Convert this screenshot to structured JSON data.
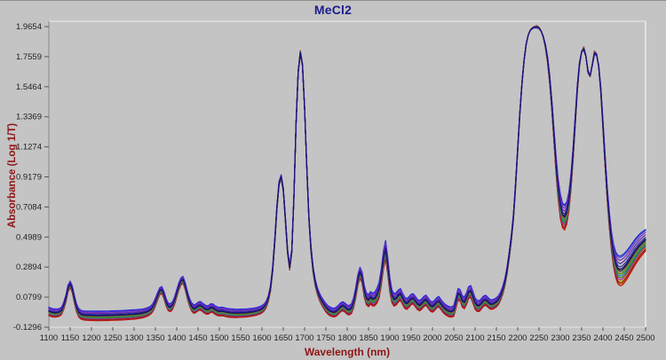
{
  "window": {
    "background_color": "#c4c4c4"
  },
  "chart": {
    "title": "MeCl2",
    "title_color": "#1c1c8e",
    "xlabel": "Wavelength (nm)",
    "ylabel": "Absorbance (Log 1/T)",
    "axis_title_color": "#8e1515"
  },
  "chart_data": {
    "type": "line",
    "title": "MeCl2",
    "xlabel": "Wavelength (nm)",
    "ylabel": "Absorbance (Log 1/T)",
    "xlim": [
      1100,
      2500
    ],
    "ylim": [
      -0.1296,
      1.9654
    ],
    "grid": false,
    "legend": "none",
    "x_ticks": [
      1100,
      1150,
      1200,
      1250,
      1300,
      1350,
      1400,
      1450,
      1500,
      1550,
      1600,
      1650,
      1700,
      1750,
      1800,
      1850,
      1900,
      1950,
      2000,
      2050,
      2100,
      2150,
      2200,
      2250,
      2300,
      2350,
      2400,
      2450,
      2500
    ],
    "y_ticks": [
      "1.9654",
      "1.7559",
      "1.5464",
      "1.3369",
      "1.1274",
      "0.9179",
      "0.7084",
      "0.4989",
      "0.2894",
      "0.0799",
      "-0.1296"
    ],
    "x_start": 1100,
    "x_step": 5,
    "description": "Many overlapping NIR absorbance spectra of MeCl2 samples; peaks near 1150, 1365, 1415, 1645, 1690, 1830, 1890, 2245, 2355 and 2381 nm",
    "base_absorbance": [
      -0.02,
      -0.026,
      -0.03,
      -0.031,
      -0.03,
      -0.026,
      -0.015,
      0.02,
      0.07,
      0.14,
      0.17,
      0.135,
      0.065,
      0.005,
      -0.028,
      -0.042,
      -0.047,
      -0.049,
      -0.05,
      -0.05,
      -0.05,
      -0.05,
      -0.051,
      -0.051,
      -0.051,
      -0.05,
      -0.05,
      -0.05,
      -0.05,
      -0.049,
      -0.049,
      -0.048,
      -0.048,
      -0.047,
      -0.047,
      -0.046,
      -0.045,
      -0.044,
      -0.043,
      -0.042,
      -0.041,
      -0.04,
      -0.038,
      -0.036,
      -0.034,
      -0.03,
      -0.025,
      -0.018,
      -0.008,
      0.012,
      0.045,
      0.085,
      0.12,
      0.13,
      0.095,
      0.045,
      0.012,
      0.006,
      0.02,
      0.055,
      0.105,
      0.155,
      0.19,
      0.2,
      0.155,
      0.095,
      0.045,
      0.012,
      -0.004,
      0.002,
      0.014,
      0.02,
      0.01,
      -0.002,
      -0.01,
      -0.008,
      0.004,
      0.002,
      -0.01,
      -0.018,
      -0.022,
      -0.02,
      -0.022,
      -0.026,
      -0.029,
      -0.031,
      -0.032,
      -0.033,
      -0.033,
      -0.033,
      -0.032,
      -0.032,
      -0.031,
      -0.03,
      -0.028,
      -0.026,
      -0.024,
      -0.021,
      -0.017,
      -0.012,
      -0.005,
      0.008,
      0.03,
      0.07,
      0.14,
      0.27,
      0.47,
      0.7,
      0.87,
      0.92,
      0.83,
      0.62,
      0.4,
      0.285,
      0.4,
      0.78,
      1.29,
      1.65,
      1.785,
      1.7,
      1.4,
      1.0,
      0.64,
      0.415,
      0.27,
      0.18,
      0.122,
      0.082,
      0.052,
      0.028,
      0.006,
      -0.01,
      -0.02,
      -0.026,
      -0.028,
      -0.02,
      -0.006,
      0.01,
      0.016,
      0.006,
      -0.008,
      -0.012,
      0.0,
      0.04,
      0.11,
      0.2,
      0.25,
      0.215,
      0.12,
      0.068,
      0.055,
      0.075,
      0.062,
      0.068,
      0.09,
      0.13,
      0.22,
      0.34,
      0.41,
      0.3,
      0.165,
      0.085,
      0.06,
      0.068,
      0.088,
      0.098,
      0.068,
      0.04,
      0.032,
      0.046,
      0.064,
      0.068,
      0.048,
      0.028,
      0.02,
      0.032,
      0.05,
      0.058,
      0.038,
      0.018,
      0.01,
      0.022,
      0.04,
      0.048,
      0.028,
      0.008,
      -0.006,
      -0.016,
      -0.022,
      -0.024,
      -0.016,
      0.04,
      0.1,
      0.092,
      0.05,
      0.04,
      0.07,
      0.112,
      0.118,
      0.078,
      0.035,
      0.018,
      0.018,
      0.034,
      0.052,
      0.058,
      0.044,
      0.03,
      0.028,
      0.034,
      0.044,
      0.06,
      0.088,
      0.128,
      0.185,
      0.265,
      0.37,
      0.49,
      0.64,
      0.86,
      1.11,
      1.36,
      1.57,
      1.73,
      1.845,
      1.91,
      1.942,
      1.956,
      1.962,
      1.964,
      1.956,
      1.934,
      1.894,
      1.83,
      1.736,
      1.6,
      1.42,
      1.21,
      1.0,
      0.83,
      0.715,
      0.65,
      0.635,
      0.665,
      0.745,
      0.885,
      1.08,
      1.31,
      1.54,
      1.705,
      1.79,
      1.812,
      1.76,
      1.65,
      1.622,
      1.7,
      1.782,
      1.772,
      1.69,
      1.52,
      1.28,
      1.03,
      0.8,
      0.615,
      0.47,
      0.368,
      0.305,
      0.272,
      0.262,
      0.268,
      0.282,
      0.3,
      0.322,
      0.345,
      0.368,
      0.392,
      0.412,
      0.432,
      0.448,
      0.462,
      0.476
    ],
    "spread_profile": [
      [
        1100,
        0.03
      ],
      [
        1145,
        0.024
      ],
      [
        1150,
        0.022
      ],
      [
        1170,
        0.03
      ],
      [
        1200,
        0.033
      ],
      [
        1300,
        0.033
      ],
      [
        1345,
        0.028
      ],
      [
        1365,
        0.024
      ],
      [
        1390,
        0.028
      ],
      [
        1415,
        0.024
      ],
      [
        1440,
        0.03
      ],
      [
        1520,
        0.03
      ],
      [
        1600,
        0.026
      ],
      [
        1625,
        0.018
      ],
      [
        1645,
        0.012
      ],
      [
        1665,
        0.016
      ],
      [
        1678,
        0.0
      ],
      [
        1690,
        -0.012
      ],
      [
        1702,
        0.0
      ],
      [
        1715,
        0.02
      ],
      [
        1750,
        0.03
      ],
      [
        1800,
        0.032
      ],
      [
        1830,
        0.038
      ],
      [
        1860,
        0.045
      ],
      [
        1890,
        0.065
      ],
      [
        1905,
        0.045
      ],
      [
        1950,
        0.036
      ],
      [
        2000,
        0.036
      ],
      [
        2045,
        0.036
      ],
      [
        2060,
        0.04
      ],
      [
        2090,
        0.042
      ],
      [
        2120,
        0.036
      ],
      [
        2150,
        0.032
      ],
      [
        2180,
        0.024
      ],
      [
        2205,
        0.012
      ],
      [
        2225,
        0.0
      ],
      [
        2245,
        -0.008
      ],
      [
        2258,
        0.0
      ],
      [
        2285,
        0.045
      ],
      [
        2300,
        0.085
      ],
      [
        2310,
        0.088
      ],
      [
        2325,
        0.055
      ],
      [
        2345,
        0.012
      ],
      [
        2350,
        0.0
      ],
      [
        2355,
        -0.012
      ],
      [
        2362,
        0.0
      ],
      [
        2367,
        0.014
      ],
      [
        2372,
        0.0
      ],
      [
        2381,
        -0.014
      ],
      [
        2388,
        0.0
      ],
      [
        2395,
        0.022
      ],
      [
        2415,
        0.055
      ],
      [
        2435,
        0.1
      ],
      [
        2445,
        0.105
      ],
      [
        2465,
        0.095
      ],
      [
        2485,
        0.085
      ],
      [
        2500,
        0.075
      ]
    ],
    "series": [
      {
        "name": "spectrum-orange",
        "color": "#cc7a1e",
        "offset_factor": -0.9
      },
      {
        "name": "spectrum-gold",
        "color": "#bfa300",
        "offset_factor": -0.72
      },
      {
        "name": "spectrum-red",
        "color": "#c41414",
        "offset_factor": -1.0
      },
      {
        "name": "spectrum-darkred",
        "color": "#8f1a1a",
        "offset_factor": -0.82
      },
      {
        "name": "spectrum-magenta",
        "color": "#b424b4",
        "offset_factor": -0.6
      },
      {
        "name": "spectrum-green",
        "color": "#1f7d1f",
        "offset_factor": -0.46
      },
      {
        "name": "spectrum-teal",
        "color": "#188f8f",
        "offset_factor": -0.32
      },
      {
        "name": "spectrum-olive",
        "color": "#7e7e00",
        "offset_factor": -0.2
      },
      {
        "name": "spectrum-gray",
        "color": "#6e6e6e",
        "offset_factor": -0.08
      },
      {
        "name": "spectrum-black",
        "color": "#202020",
        "offset_factor": 0.02
      },
      {
        "name": "spectrum-royal",
        "color": "#3a50cc",
        "offset_factor": 0.9
      },
      {
        "name": "spectrum-blue",
        "color": "#2424e0",
        "offset_factor": 1.0
      },
      {
        "name": "spectrum-purple",
        "color": "#7a30bd",
        "offset_factor": 0.72
      },
      {
        "name": "spectrum-violet",
        "color": "#5a28a8",
        "offset_factor": 0.5
      },
      {
        "name": "spectrum-indigo",
        "color": "#30309e",
        "offset_factor": 0.28
      },
      {
        "name": "spectrum-navy",
        "color": "#191178",
        "offset_factor": 0.12
      }
    ]
  }
}
